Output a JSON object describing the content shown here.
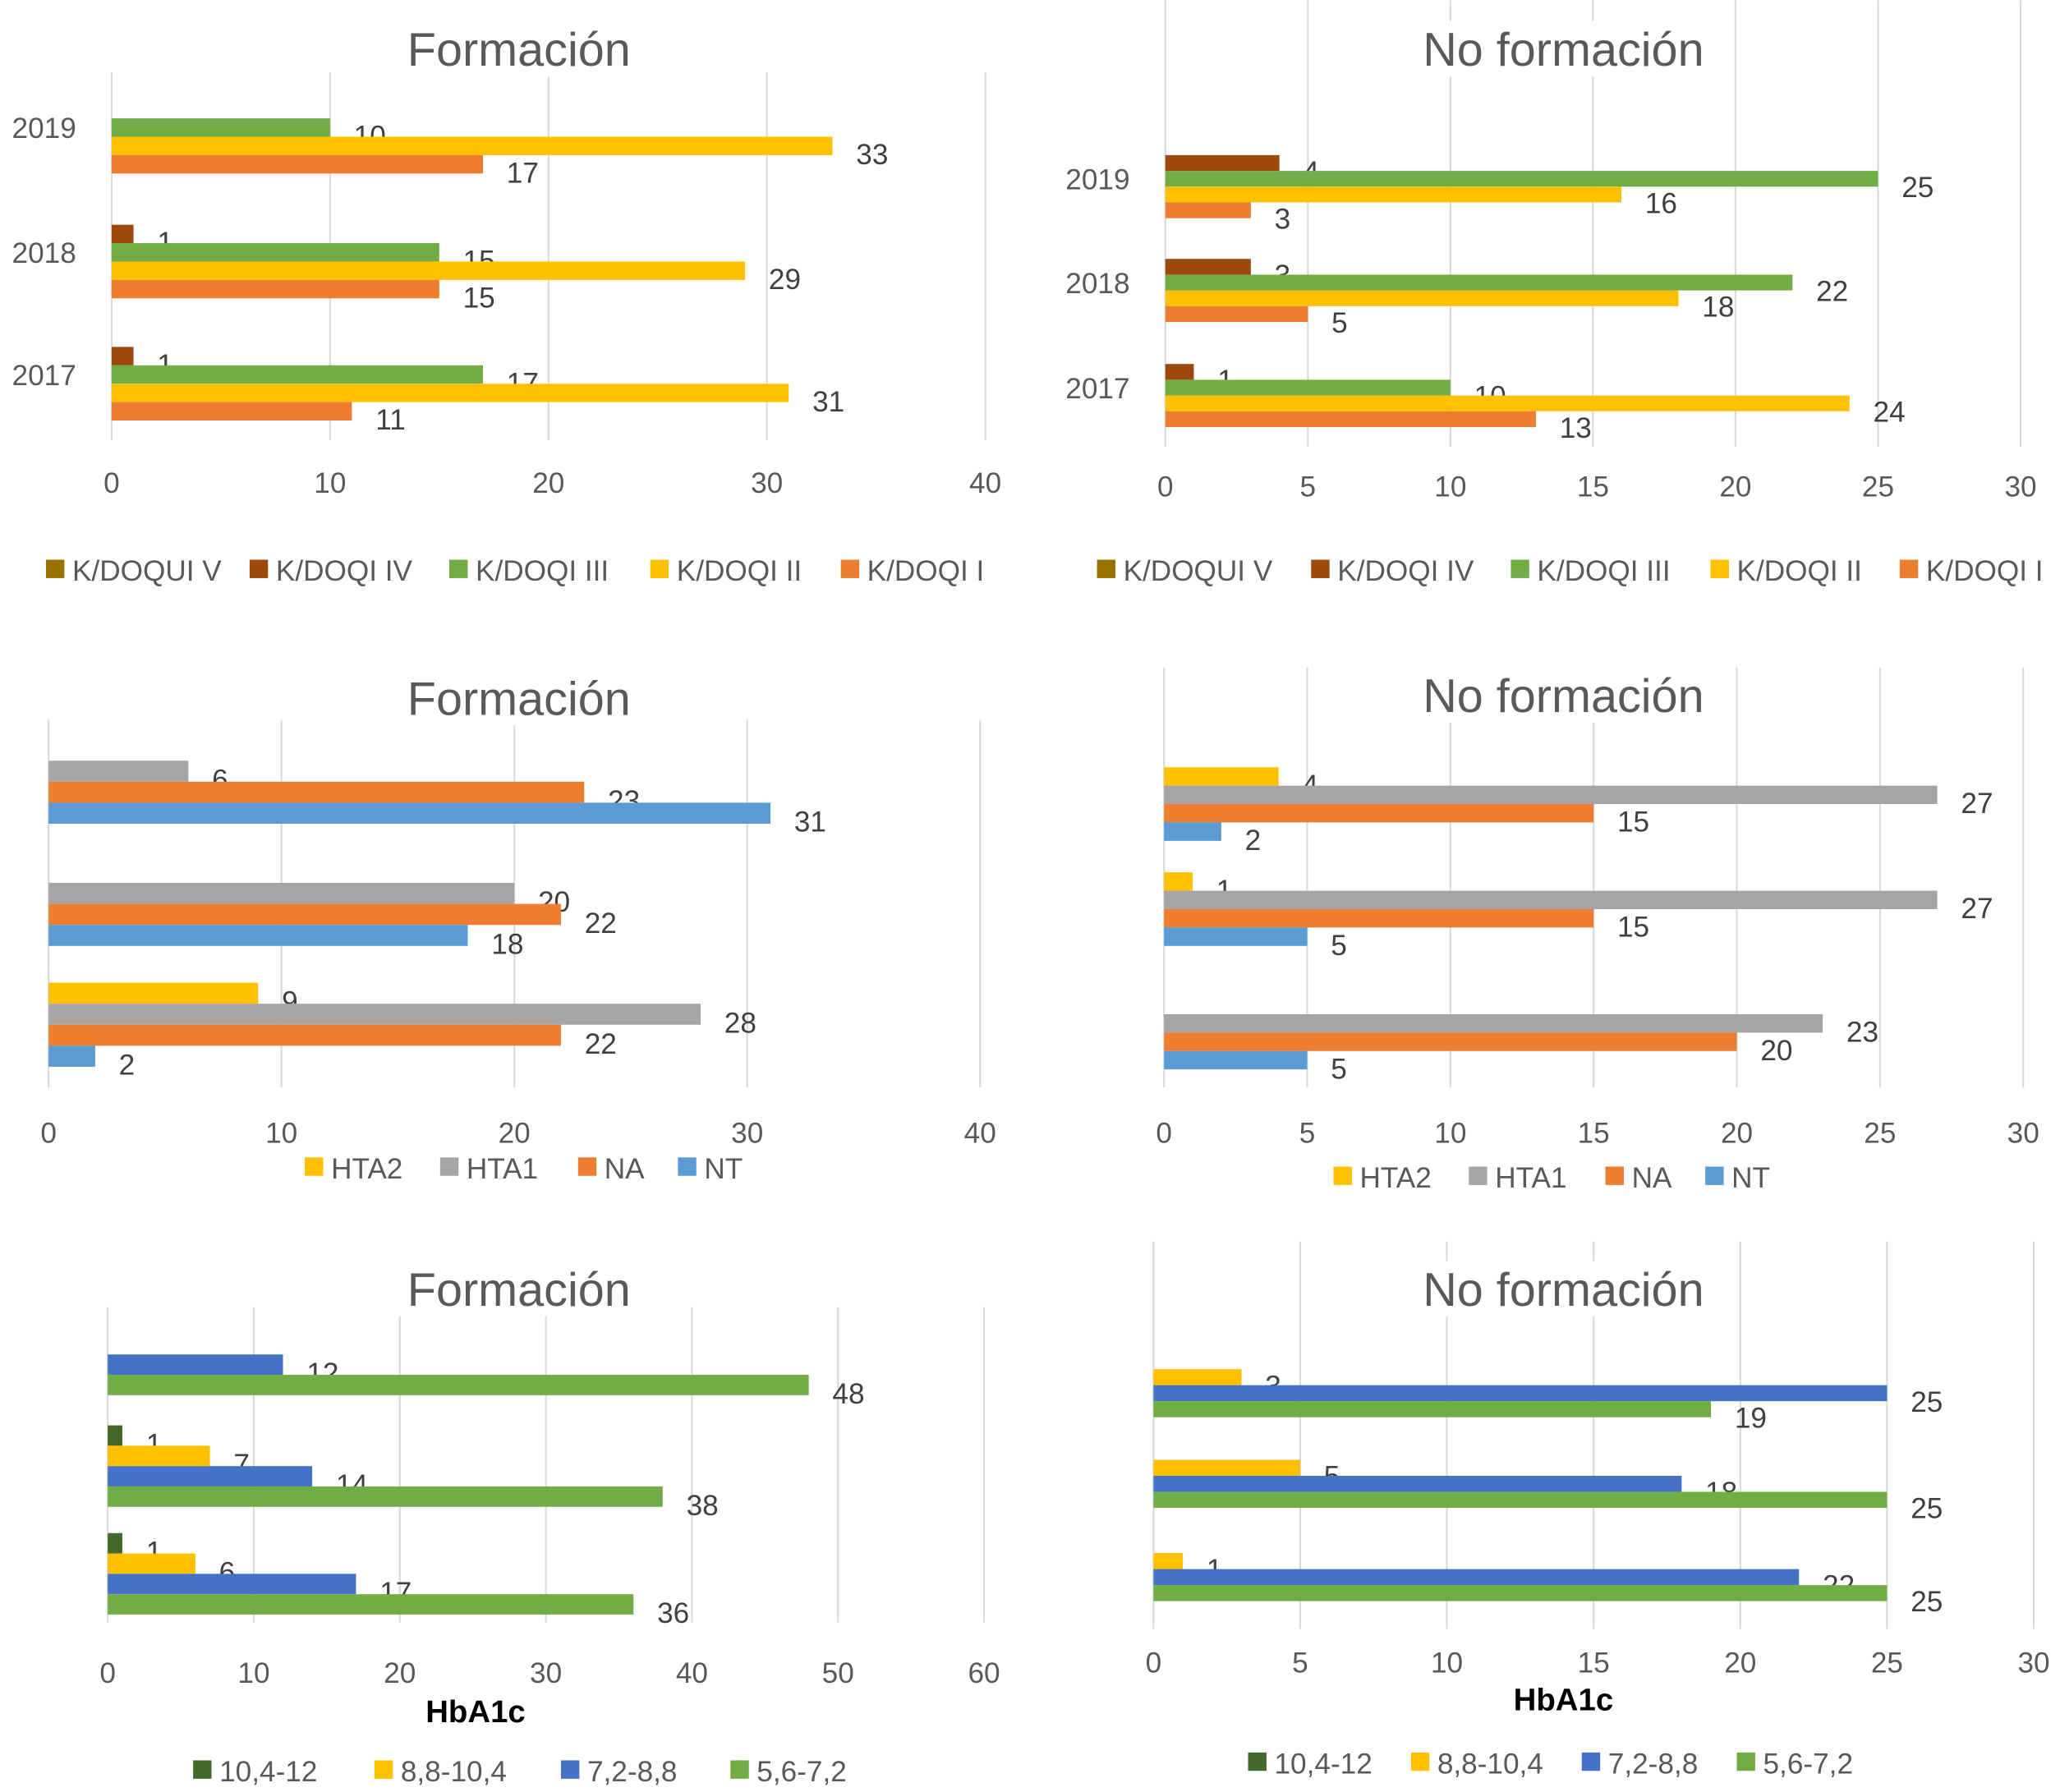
{
  "chart_data": [
    {
      "type": "bar",
      "orientation": "horizontal",
      "title": "Formación",
      "xlabel": "",
      "categories": [
        "2019",
        "2018",
        "2017"
      ],
      "show_categories": true,
      "xlim": [
        0,
        40
      ],
      "xticks": [
        0,
        10,
        20,
        30,
        40
      ],
      "grid": true,
      "legend": "bottom",
      "series": [
        {
          "name": "K/DOQUI V",
          "color": "#997300",
          "values": [
            0,
            0,
            0
          ]
        },
        {
          "name": "K/DOQI IV",
          "color": "#9E480E",
          "values": [
            0,
            1,
            1
          ]
        },
        {
          "name": "K/DOQI III",
          "color": "#70AD47",
          "values": [
            10,
            15,
            17
          ]
        },
        {
          "name": "K/DOQI II",
          "color": "#FFC000",
          "values": [
            33,
            29,
            31
          ]
        },
        {
          "name": "K/DOQI I",
          "color": "#ED7D31",
          "values": [
            17,
            15,
            11
          ]
        }
      ]
    },
    {
      "type": "bar",
      "orientation": "horizontal",
      "title": "No formación",
      "xlabel": "",
      "categories": [
        "2019",
        "2018",
        "2017"
      ],
      "show_categories": true,
      "xlim": [
        0,
        30
      ],
      "xticks": [
        0,
        5,
        10,
        15,
        20,
        25,
        30
      ],
      "grid": true,
      "legend": "bottom",
      "series": [
        {
          "name": "K/DOQUI V",
          "color": "#997300",
          "values": [
            0,
            0,
            0
          ]
        },
        {
          "name": "K/DOQI IV",
          "color": "#9E480E",
          "values": [
            4,
            3,
            1
          ]
        },
        {
          "name": "K/DOQI III",
          "color": "#70AD47",
          "values": [
            25,
            22,
            10
          ]
        },
        {
          "name": "K/DOQI II",
          "color": "#FFC000",
          "values": [
            16,
            18,
            24
          ]
        },
        {
          "name": "K/DOQI I",
          "color": "#ED7D31",
          "values": [
            3,
            5,
            13
          ]
        }
      ]
    },
    {
      "type": "bar",
      "orientation": "horizontal",
      "title": "Formación",
      "xlabel": "",
      "categories": [
        "",
        "",
        ""
      ],
      "show_categories": false,
      "xlim": [
        0,
        40
      ],
      "xticks": [
        0,
        10,
        20,
        30,
        40
      ],
      "grid": true,
      "legend": "bottom",
      "series": [
        {
          "name": "HTA2",
          "color": "#FFC000",
          "values": [
            0,
            0,
            9
          ]
        },
        {
          "name": "HTA1",
          "color": "#A5A5A5",
          "values": [
            6,
            20,
            28
          ]
        },
        {
          "name": "NA",
          "color": "#ED7D31",
          "values": [
            23,
            22,
            22
          ]
        },
        {
          "name": "NT",
          "color": "#5B9BD5",
          "values": [
            31,
            18,
            2
          ]
        }
      ]
    },
    {
      "type": "bar",
      "orientation": "horizontal",
      "title": "No formación",
      "xlabel": "",
      "categories": [
        "",
        "",
        ""
      ],
      "show_categories": false,
      "xlim": [
        0,
        30
      ],
      "xticks": [
        0,
        5,
        10,
        15,
        20,
        25,
        30
      ],
      "grid": true,
      "legend": "bottom",
      "series": [
        {
          "name": "HTA2",
          "color": "#FFC000",
          "values": [
            4,
            1,
            0
          ]
        },
        {
          "name": "HTA1",
          "color": "#A5A5A5",
          "values": [
            27,
            27,
            23
          ]
        },
        {
          "name": "NA",
          "color": "#ED7D31",
          "values": [
            15,
            15,
            20
          ]
        },
        {
          "name": "NT",
          "color": "#5B9BD5",
          "values": [
            2,
            5,
            5
          ]
        }
      ]
    },
    {
      "type": "bar",
      "orientation": "horizontal",
      "title": "Formación",
      "xlabel": "HbA1c",
      "categories": [
        "",
        "",
        ""
      ],
      "show_categories": false,
      "xlim": [
        0,
        60
      ],
      "xticks": [
        0,
        10,
        20,
        30,
        40,
        50,
        60
      ],
      "grid": true,
      "legend": "bottom",
      "series": [
        {
          "name": "10,4-12",
          "color": "#43682B",
          "values": [
            0,
            1,
            1
          ]
        },
        {
          "name": "8,8-10,4",
          "color": "#FFC000",
          "values": [
            0,
            7,
            6
          ]
        },
        {
          "name": "7,2-8,8",
          "color": "#4472C4",
          "values": [
            12,
            14,
            17
          ]
        },
        {
          "name": "5,6-7,2",
          "color": "#70AD47",
          "values": [
            48,
            38,
            36
          ]
        }
      ]
    },
    {
      "type": "bar",
      "orientation": "horizontal",
      "title": "No formación",
      "xlabel": "HbA1c",
      "categories": [
        "",
        "",
        ""
      ],
      "show_categories": false,
      "xlim": [
        0,
        30
      ],
      "xticks": [
        0,
        5,
        10,
        15,
        20,
        25,
        30
      ],
      "grid": true,
      "legend": "bottom",
      "series": [
        {
          "name": "10,4-12",
          "color": "#43682B",
          "values": [
            0,
            0,
            0
          ]
        },
        {
          "name": "8,8-10,4",
          "color": "#FFC000",
          "values": [
            3,
            5,
            1
          ]
        },
        {
          "name": "7,2-8,8",
          "color": "#4472C4",
          "values": [
            25,
            18,
            22
          ]
        },
        {
          "name": "5,6-7,2",
          "color": "#70AD47",
          "values": [
            19,
            25,
            25
          ]
        }
      ]
    }
  ]
}
